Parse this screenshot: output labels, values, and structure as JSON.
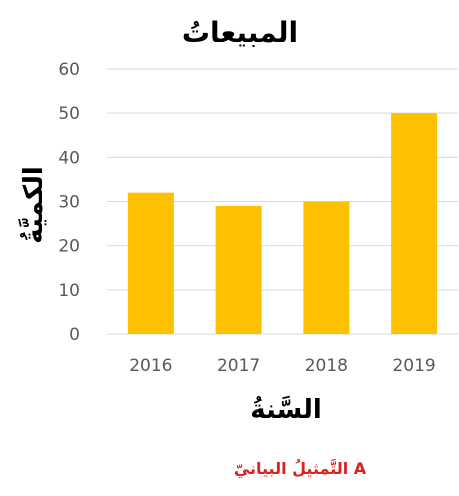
{
  "chart_data": {
    "type": "bar",
    "title": "المبيعاتُ",
    "xlabel": "السَّنةُ",
    "ylabel": "الكميَّةُ",
    "categories": [
      "2016",
      "2017",
      "2018",
      "2019"
    ],
    "values": [
      32,
      29,
      30,
      50
    ],
    "ylim": [
      0,
      60
    ],
    "yticks": [
      0,
      10,
      20,
      30,
      40,
      50,
      60
    ],
    "grid": true,
    "bar_color": "#FFC000",
    "grid_color": "#D9D9D9",
    "caption": "التَّمثيلُ البيانيّ A",
    "caption_color": "#E0201B"
  }
}
